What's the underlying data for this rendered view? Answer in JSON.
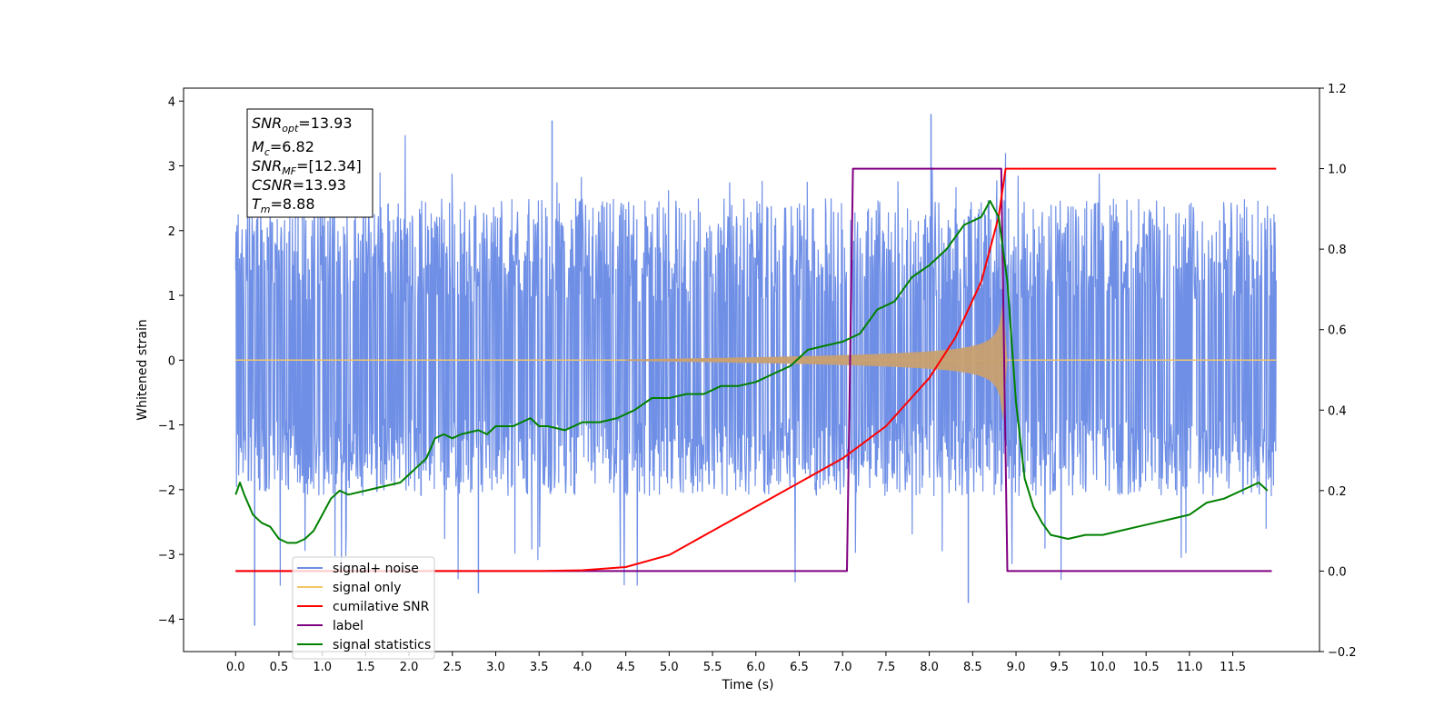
{
  "chart_data": {
    "type": "line",
    "xlabel": "Time (s)",
    "ylabel": "Whitened strain",
    "xlim": [
      -0.6,
      12.5
    ],
    "ylim_left": [
      -4.5,
      4.2
    ],
    "ylim_right": [
      -0.2,
      1.2
    ],
    "x_ticks": [
      "0.0",
      "0.5",
      "1.0",
      "1.5",
      "2.0",
      "2.5",
      "3.0",
      "3.5",
      "4.0",
      "4.5",
      "5.0",
      "5.5",
      "6.0",
      "6.5",
      "7.0",
      "7.5",
      "8.0",
      "8.5",
      "9.0",
      "9.5",
      "10.0",
      "10.5",
      "11.0",
      "11.5"
    ],
    "y_ticks_left": [
      "4",
      "3",
      "2",
      "1",
      "0",
      "−1",
      "−2",
      "−3",
      "−4"
    ],
    "y_ticks_right": [
      "1.2",
      "1.0",
      "0.8",
      "0.6",
      "0.4",
      "0.2",
      "0.0",
      "−0.2"
    ],
    "colors": {
      "noise": "#6f8fe6",
      "signal": "#f2c66b",
      "signal_overlap": "#c8a070",
      "snr": "#ff0000",
      "label": "#800080",
      "statistics": "#008000"
    },
    "series": [
      {
        "name": "signal+ noise",
        "axis": "left",
        "x_range": [
          0.0,
          12.0
        ],
        "envelope": [
          -1.9,
          2.5
        ],
        "spike_max": 3.8,
        "spike_min": -4.1
      },
      {
        "name": "signal only",
        "axis": "left",
        "x_range": [
          0.0,
          12.0
        ],
        "chirp_start": 4.5,
        "merger": 8.85,
        "peak_amplitude": 0.95
      },
      {
        "name": "cumilative SNR",
        "axis": "right",
        "x": [
          0.0,
          3.5,
          4.0,
          4.5,
          5.0,
          5.5,
          6.0,
          6.5,
          7.0,
          7.5,
          8.0,
          8.3,
          8.6,
          8.8,
          8.88,
          9.0,
          12.0
        ],
        "y": [
          0.0,
          0.0,
          0.002,
          0.01,
          0.04,
          0.1,
          0.16,
          0.22,
          0.28,
          0.36,
          0.48,
          0.58,
          0.72,
          0.88,
          1.0,
          1.0,
          1.0
        ]
      },
      {
        "name": "label",
        "axis": "right",
        "x": [
          0.0,
          7.05,
          7.12,
          8.83,
          8.9,
          11.95
        ],
        "y": [
          0.0,
          0.0,
          1.0,
          1.0,
          0.0,
          0.0
        ]
      },
      {
        "name": "signal statistics",
        "axis": "right",
        "x": [
          0.0,
          0.05,
          0.1,
          0.2,
          0.3,
          0.4,
          0.5,
          0.6,
          0.7,
          0.8,
          0.9,
          1.0,
          1.1,
          1.2,
          1.3,
          1.5,
          1.7,
          1.9,
          2.0,
          2.1,
          2.2,
          2.3,
          2.4,
          2.5,
          2.6,
          2.8,
          2.9,
          3.0,
          3.2,
          3.4,
          3.5,
          3.6,
          3.8,
          4.0,
          4.2,
          4.4,
          4.6,
          4.8,
          5.0,
          5.2,
          5.4,
          5.6,
          5.8,
          6.0,
          6.2,
          6.4,
          6.6,
          6.8,
          7.0,
          7.2,
          7.4,
          7.6,
          7.8,
          8.0,
          8.2,
          8.4,
          8.6,
          8.7,
          8.8,
          8.9,
          9.0,
          9.1,
          9.2,
          9.3,
          9.4,
          9.6,
          9.8,
          10.0,
          10.2,
          10.4,
          10.6,
          10.8,
          11.0,
          11.2,
          11.4,
          11.6,
          11.8,
          11.9
        ],
        "y": [
          0.19,
          0.22,
          0.19,
          0.14,
          0.12,
          0.11,
          0.08,
          0.07,
          0.07,
          0.08,
          0.1,
          0.14,
          0.18,
          0.2,
          0.19,
          0.2,
          0.21,
          0.22,
          0.24,
          0.26,
          0.28,
          0.33,
          0.34,
          0.33,
          0.34,
          0.35,
          0.34,
          0.36,
          0.36,
          0.38,
          0.36,
          0.36,
          0.35,
          0.37,
          0.37,
          0.38,
          0.4,
          0.43,
          0.43,
          0.44,
          0.44,
          0.46,
          0.46,
          0.47,
          0.49,
          0.51,
          0.55,
          0.56,
          0.57,
          0.59,
          0.65,
          0.67,
          0.73,
          0.76,
          0.8,
          0.86,
          0.88,
          0.92,
          0.88,
          0.72,
          0.42,
          0.23,
          0.16,
          0.12,
          0.09,
          0.08,
          0.09,
          0.09,
          0.1,
          0.11,
          0.12,
          0.13,
          0.14,
          0.17,
          0.18,
          0.2,
          0.22,
          0.2
        ]
      }
    ],
    "legend": {
      "position": "lower-left",
      "entries": [
        "signal+ noise",
        "signal only",
        "cumilative SNR",
        "label",
        "signal statistics"
      ]
    }
  },
  "annotation": {
    "snr_opt": {
      "base": "SNR",
      "sub": "opt",
      "value": "=13.93"
    },
    "mc": {
      "base": "M",
      "sub": "c",
      "value": "=6.82"
    },
    "snr_mf": {
      "base": "SNR",
      "sub": "MF",
      "value": "=[12.34]"
    },
    "csnr": {
      "base": "CSNR",
      "sub": "",
      "value": "=13.93"
    },
    "tm": {
      "base": "T",
      "sub": "m",
      "value": "=8.88"
    }
  }
}
